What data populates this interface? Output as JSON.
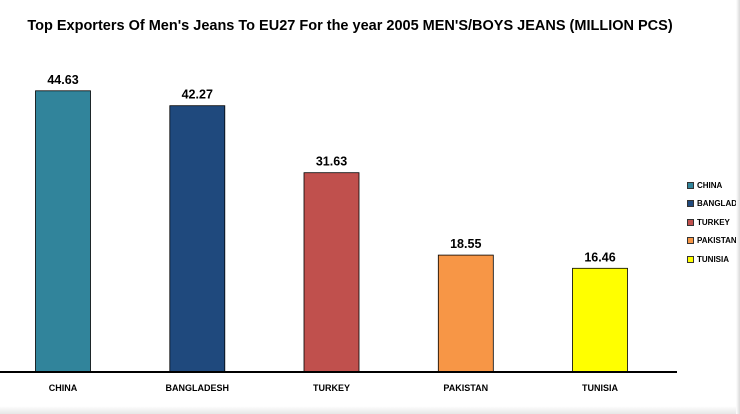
{
  "chart_data": {
    "type": "bar",
    "title": "Top Exporters Of Men's Jeans To EU27 For the year 2005 MEN'S/BOYS JEANS (MILLION PCS)",
    "categories": [
      "CHINA",
      "BANGLADESH",
      "TURKEY",
      "PAKISTAN",
      "TUNISIA"
    ],
    "values": [
      44.63,
      42.27,
      31.63,
      18.55,
      16.46
    ],
    "colors": [
      "#31849b",
      "#1f497d",
      "#c0504d",
      "#f79646",
      "#ffff00"
    ],
    "ylim": [
      0,
      50
    ],
    "grid": false,
    "legend": {
      "position": "right",
      "entries": [
        "CHINA",
        "BANGLADESH",
        "TURKEY",
        "PAKISTAN",
        "TUNISIA"
      ]
    }
  }
}
